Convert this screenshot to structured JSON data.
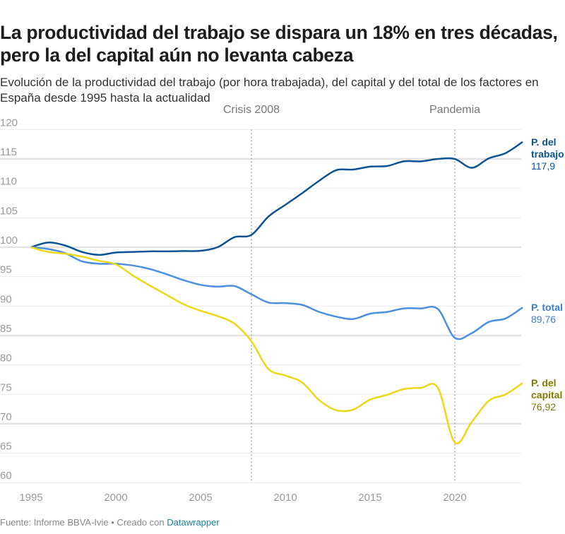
{
  "header": {
    "title": "La productividad del trabajo se dispara un 18% en tres décadas, pero la del capital aún no levanta cabeza",
    "subtitle": "Evolución de la productividad del trabajo (por hora trabajada), del capital y del total de los factores en España desde 1995 hasta la actualidad"
  },
  "footer": {
    "source": "Fuente: Informe BBVA-Ivie • Creado con ",
    "tool": "Datawrapper"
  },
  "chart_data": {
    "type": "line",
    "title": "",
    "xlabel": "",
    "ylabel": "",
    "xlim": [
      1995,
      2024
    ],
    "ylim": [
      60,
      120
    ],
    "x_ticks": [
      1995,
      2000,
      2005,
      2010,
      2015,
      2020
    ],
    "y_ticks": [
      60,
      65,
      70,
      75,
      80,
      85,
      90,
      95,
      100,
      105,
      110,
      115,
      120
    ],
    "grid": true,
    "annotations": [
      {
        "label": "Crisis 2008",
        "x": 2008
      },
      {
        "label": "Pandemia",
        "x": 2020
      }
    ],
    "x": [
      1995,
      1996,
      1997,
      1998,
      1999,
      2000,
      2001,
      2002,
      2003,
      2004,
      2005,
      2006,
      2007,
      2008,
      2009,
      2010,
      2011,
      2012,
      2013,
      2014,
      2015,
      2016,
      2017,
      2018,
      2019,
      2020,
      2021,
      2022,
      2023,
      2024
    ],
    "series": [
      {
        "name": "P. del trabajo",
        "end_label": "117,9",
        "color": "#0b5394",
        "label_color": "#0b5394",
        "values": [
          100,
          100.8,
          100.3,
          99.2,
          98.7,
          99.1,
          99.2,
          99.3,
          99.3,
          99.35,
          99.4,
          100.0,
          101.7,
          102.1,
          105.2,
          107.2,
          109.2,
          111.3,
          113.1,
          113.2,
          113.7,
          113.8,
          114.6,
          114.6,
          115.0,
          115.0,
          113.5,
          115.1,
          116.0,
          117.9
        ]
      },
      {
        "name": "P. total",
        "end_label": "89,76",
        "color": "#4a8fe0",
        "label_color": "#3a80d2",
        "values": [
          100,
          99.7,
          99.0,
          97.6,
          97.2,
          97.2,
          96.9,
          96.3,
          95.4,
          94.4,
          93.6,
          93.3,
          93.4,
          92.0,
          90.6,
          90.5,
          90.2,
          89.0,
          88.2,
          87.8,
          88.7,
          89.0,
          89.6,
          89.6,
          89.5,
          84.6,
          85.4,
          87.3,
          87.9,
          89.76
        ]
      },
      {
        "name": "P. del capital",
        "end_label": "76,92",
        "color": "#ecd817",
        "label_color": "#857a00",
        "values": [
          100,
          99.2,
          98.9,
          98.4,
          97.7,
          97.1,
          95.2,
          93.5,
          91.9,
          90.3,
          89.2,
          88.3,
          87.0,
          84.0,
          79.3,
          78.2,
          77.0,
          74.0,
          72.3,
          72.4,
          74.1,
          74.9,
          75.9,
          76.1,
          76.1,
          66.8,
          70.3,
          73.9,
          75.0,
          76.92
        ]
      }
    ]
  }
}
